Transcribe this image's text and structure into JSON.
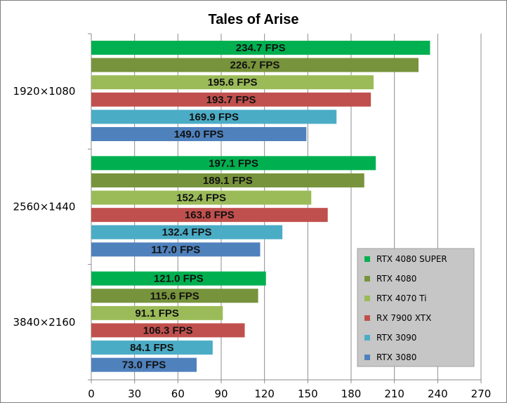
{
  "chart_data": {
    "type": "bar",
    "orientation": "horizontal",
    "title": "Tales of Arise",
    "xlabel": "",
    "ylabel": "",
    "xlim": [
      0,
      270
    ],
    "x_ticks": [
      0,
      30,
      60,
      90,
      120,
      150,
      180,
      210,
      240,
      270
    ],
    "vertical_grid": true,
    "legend_position": "bottom-right",
    "categories": [
      "1920×1080",
      "2560×1440",
      "3840×2160"
    ],
    "value_suffix": " FPS",
    "series": [
      {
        "name": "RTX 4080 SUPER",
        "color": "#00b050",
        "values": [
          234.7,
          197.1,
          121.0
        ],
        "labels": [
          "234.7 FPS",
          "197.1 FPS",
          "121.0 FPS"
        ]
      },
      {
        "name": "RTX 4080",
        "color": "#77933c",
        "values": [
          226.7,
          189.1,
          115.6
        ],
        "labels": [
          "226.7 FPS",
          "189.1 FPS",
          "115.6 FPS"
        ]
      },
      {
        "name": "RTX 4070 Ti",
        "color": "#9bbb59",
        "values": [
          195.6,
          152.4,
          91.1
        ],
        "labels": [
          "195.6 FPS",
          "152.4 FPS",
          "91.1 FPS"
        ]
      },
      {
        "name": "RX 7900 XTX",
        "color": "#c0504d",
        "values": [
          193.7,
          163.8,
          106.3
        ],
        "labels": [
          "193.7 FPS",
          "163.8 FPS",
          "106.3 FPS"
        ]
      },
      {
        "name": "RTX 3090",
        "color": "#4bacc6",
        "values": [
          169.9,
          132.4,
          84.1
        ],
        "labels": [
          "169.9 FPS",
          "132.4 FPS",
          "84.1 FPS"
        ]
      },
      {
        "name": "RTX 3080",
        "color": "#4f81bd",
        "values": [
          149.0,
          117.0,
          73.0
        ],
        "labels": [
          "149.0 FPS",
          "117.0 FPS",
          "73.0 FPS"
        ]
      }
    ]
  }
}
